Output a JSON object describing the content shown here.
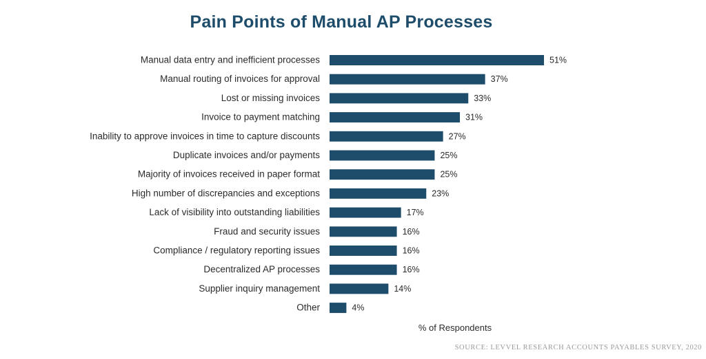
{
  "chart_data": {
    "type": "bar",
    "orientation": "horizontal",
    "title": "Pain Points of Manual AP Processes",
    "xlabel": "% of Respondents",
    "ylabel": "",
    "source": "SOURCE: LEVVEL RESEARCH ACCOUNTS PAYABLES SURVEY, 2020",
    "bar_color": "#1e4d6b",
    "grid": false,
    "xlim": [
      0,
      51
    ],
    "categories": [
      "Manual data entry and inefficient processes",
      "Manual routing of invoices for approval",
      "Lost or missing invoices",
      "Invoice to payment matching",
      "Inability to approve invoices in time to capture discounts",
      "Duplicate invoices and/or payments",
      "Majority of invoices received in paper format",
      "High number of discrepancies and exceptions",
      "Lack of visibility into outstanding liabilities",
      "Fraud and security issues",
      "Compliance / regulatory reporting issues",
      "Decentralized AP processes",
      "Supplier inquiry management",
      "Other"
    ],
    "values": [
      51,
      37,
      33,
      31,
      27,
      25,
      25,
      23,
      17,
      16,
      16,
      16,
      14,
      4
    ],
    "value_labels": [
      "51%",
      "37%",
      "33%",
      "31%",
      "27%",
      "25%",
      "25%",
      "23%",
      "17%",
      "16%",
      "16%",
      "16%",
      "14%",
      "4%"
    ]
  }
}
